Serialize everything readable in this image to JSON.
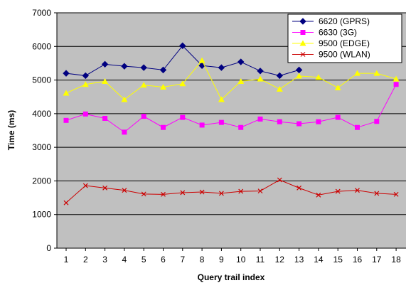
{
  "chart_data": {
    "type": "line",
    "title": "",
    "xlabel": "Query trail index",
    "ylabel": "Time (ms)",
    "ylim": [
      0,
      7000
    ],
    "yticks": [
      0,
      1000,
      2000,
      3000,
      4000,
      5000,
      6000,
      7000
    ],
    "x": [
      1,
      2,
      3,
      4,
      5,
      6,
      7,
      8,
      9,
      10,
      11,
      12,
      13,
      14,
      15,
      16,
      17,
      18
    ],
    "grid": true,
    "legend_position": "top-right",
    "plot_background": "#c0c0c0",
    "series": [
      {
        "name": "6620 (GPRS)",
        "color": "#000080",
        "marker": "diamond",
        "values": [
          5200,
          5130,
          5470,
          5410,
          5370,
          5300,
          6020,
          5430,
          5370,
          5540,
          5270,
          5130,
          5300,
          null,
          null,
          null,
          null,
          null
        ]
      },
      {
        "name": "6630 (3G)",
        "color": "#ff00ff",
        "marker": "square",
        "values": [
          3800,
          3990,
          3860,
          3450,
          3920,
          3590,
          3890,
          3660,
          3740,
          3590,
          3840,
          3760,
          3700,
          3760,
          3890,
          3590,
          3770,
          4870
        ]
      },
      {
        "name": "9500 (EDGE)",
        "color": "#ffff00",
        "marker": "triangle",
        "values": [
          4610,
          4870,
          4960,
          4420,
          4850,
          4790,
          4890,
          5580,
          4420,
          4960,
          5030,
          4730,
          5120,
          5080,
          4770,
          5200,
          5200,
          5030
        ]
      },
      {
        "name": "9500 (WLAN)",
        "color": "#cc0000",
        "marker": "x",
        "values": [
          1350,
          1860,
          1790,
          1720,
          1610,
          1600,
          1650,
          1670,
          1630,
          1690,
          1700,
          2030,
          1790,
          1580,
          1690,
          1720,
          1630,
          1600
        ]
      }
    ]
  }
}
